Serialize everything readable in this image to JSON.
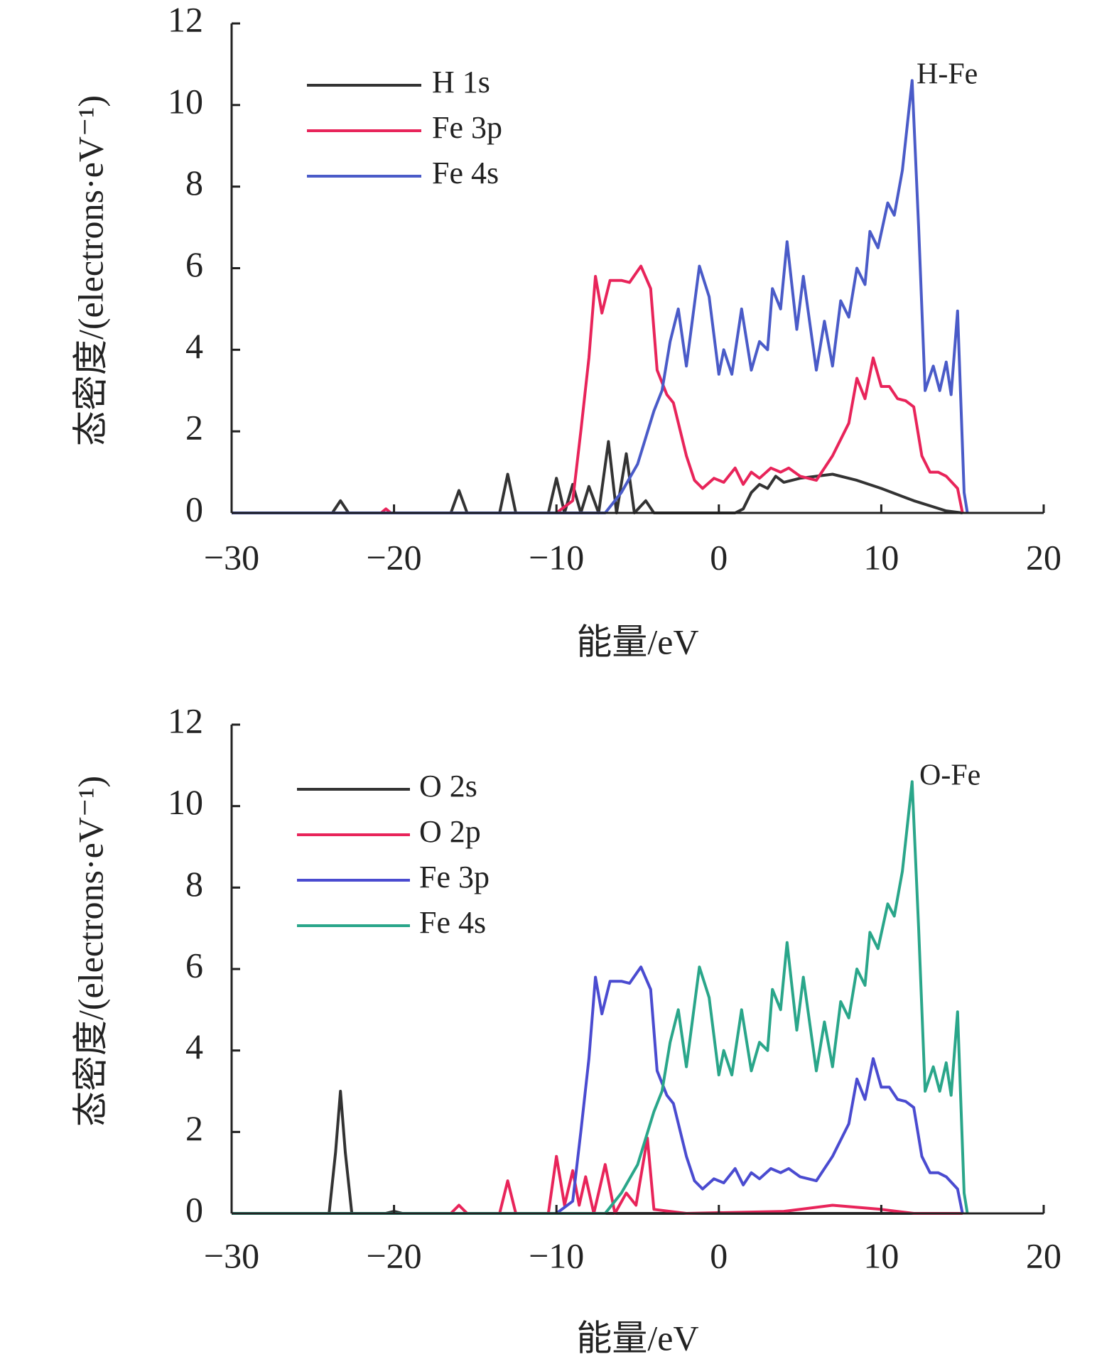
{
  "chart_data": [
    {
      "type": "line",
      "annotation": "H-Fe",
      "x_label": "能量/eV",
      "y_label": "态密度/(electrons·eV⁻¹)",
      "xlim": [
        -30,
        20
      ],
      "ylim": [
        0,
        12
      ],
      "xticks": [
        {
          "value": -30,
          "label": "−30"
        },
        {
          "value": -20,
          "label": "−20"
        },
        {
          "value": -10,
          "label": "−10"
        },
        0,
        10,
        20
      ],
      "yticks": [
        0,
        2,
        4,
        6,
        8,
        10,
        12
      ],
      "series": [
        {
          "name": "H 1s",
          "color": "#333333",
          "x": [
            -30,
            -23.8,
            -23.3,
            -22.8,
            -16.5,
            -16,
            -15.5,
            -13.5,
            -13,
            -12.5,
            -10.5,
            -10,
            -9.5,
            -9,
            -8.5,
            -8,
            -7.4,
            -6.8,
            -6.3,
            -5.7,
            -5.2,
            -4.5,
            -4,
            1,
            1.5,
            2,
            2.5,
            3,
            3.5,
            4,
            5,
            7,
            8.5,
            10,
            12,
            14,
            15
          ],
          "values": [
            0,
            0,
            0.3,
            0,
            0,
            0.55,
            0,
            0,
            0.95,
            0,
            0,
            0.85,
            0,
            0.7,
            0,
            0.65,
            0,
            1.75,
            0,
            1.45,
            0,
            0.3,
            0,
            0,
            0.1,
            0.5,
            0.7,
            0.6,
            0.9,
            0.75,
            0.85,
            0.95,
            0.8,
            0.6,
            0.3,
            0.05,
            0
          ]
        },
        {
          "name": "Fe 3p",
          "color": "#e8245a",
          "x": [
            -30,
            -20.8,
            -20.5,
            -20.2,
            -10,
            -9,
            -8.5,
            -8,
            -7.6,
            -7.2,
            -6.7,
            -6,
            -5.5,
            -4.8,
            -4.2,
            -3.8,
            -3.2,
            -2.8,
            -2,
            -1.5,
            -1,
            -0.3,
            0.3,
            1,
            1.5,
            2,
            2.5,
            3.2,
            3.8,
            4.3,
            5,
            6,
            7,
            8,
            8.5,
            9,
            9.5,
            10,
            10.5,
            11,
            11.5,
            12,
            12.5,
            13,
            13.5,
            14,
            14.7,
            15
          ],
          "values": [
            0,
            0,
            0.1,
            0,
            0,
            0.3,
            2,
            3.8,
            5.8,
            4.9,
            5.7,
            5.7,
            5.65,
            6.05,
            5.5,
            3.5,
            2.9,
            2.7,
            1.4,
            0.8,
            0.6,
            0.85,
            0.75,
            1.1,
            0.7,
            1.0,
            0.85,
            1.1,
            1.0,
            1.1,
            0.9,
            0.8,
            1.4,
            2.2,
            3.3,
            2.8,
            3.8,
            3.1,
            3.1,
            2.8,
            2.75,
            2.6,
            1.4,
            1.0,
            1.0,
            0.9,
            0.6,
            0
          ]
        },
        {
          "name": "Fe 4s",
          "color": "#4a5bc8",
          "x": [
            -30,
            -7,
            -6,
            -5,
            -4,
            -3.5,
            -3,
            -2.5,
            -2,
            -1.2,
            -0.6,
            0,
            0.3,
            0.8,
            1.4,
            2,
            2.5,
            3,
            3.3,
            3.8,
            4.2,
            4.8,
            5.2,
            6,
            6.5,
            7,
            7.5,
            8,
            8.5,
            9,
            9.3,
            9.8,
            10.4,
            10.8,
            11.3,
            11.9,
            12.3,
            12.7,
            13.2,
            13.6,
            14,
            14.3,
            14.7,
            15.1,
            15.3
          ],
          "values": [
            0,
            0,
            0.5,
            1.2,
            2.5,
            3.0,
            4.2,
            5.0,
            3.6,
            6.05,
            5.3,
            3.4,
            4.0,
            3.4,
            5.0,
            3.5,
            4.2,
            4.0,
            5.5,
            5.0,
            6.65,
            4.5,
            5.8,
            3.5,
            4.7,
            3.6,
            5.2,
            4.8,
            6.0,
            5.6,
            6.9,
            6.5,
            7.6,
            7.3,
            8.4,
            10.6,
            7,
            3.0,
            3.6,
            3.0,
            3.7,
            2.9,
            4.95,
            0.5,
            0
          ]
        }
      ]
    },
    {
      "type": "line",
      "annotation": "O-Fe",
      "x_label": "能量/eV",
      "y_label": "态密度/(electrons·eV⁻¹)",
      "xlim": [
        -30,
        20
      ],
      "ylim": [
        0,
        12
      ],
      "xticks": [
        {
          "value": -30,
          "label": "−30"
        },
        {
          "value": -20,
          "label": "−20"
        },
        {
          "value": -10,
          "label": "−10"
        },
        0,
        10,
        20
      ],
      "yticks": [
        0,
        2,
        4,
        6,
        8,
        10,
        12
      ],
      "series": [
        {
          "name": "O  2s",
          "color": "#333333",
          "x": [
            -30,
            -24,
            -23.6,
            -23.3,
            -23,
            -22.6,
            -20.5,
            -20,
            -19.5,
            15
          ],
          "values": [
            0,
            0,
            1.5,
            3.0,
            1.5,
            0,
            0,
            0.05,
            0,
            0
          ]
        },
        {
          "name": "O  2p",
          "color": "#e8245a",
          "x": [
            -30,
            -16.5,
            -16,
            -15.5,
            -13.5,
            -13,
            -12.5,
            -10.5,
            -10,
            -9.5,
            -9,
            -8.6,
            -8.2,
            -7.7,
            -7,
            -6.4,
            -5.7,
            -5.1,
            -4.4,
            -4,
            -2,
            4,
            7,
            10,
            12,
            15
          ],
          "values": [
            0,
            0,
            0.2,
            0,
            0,
            0.8,
            0,
            0,
            1.4,
            0.2,
            1.05,
            0.2,
            0.9,
            0,
            1.2,
            0,
            0.5,
            0.2,
            1.85,
            0.1,
            0,
            0.05,
            0.2,
            0.1,
            0,
            0
          ]
        },
        {
          "name": "Fe 3p",
          "color": "#4a4bd0",
          "x": [
            -30,
            -10,
            -9,
            -8.5,
            -8,
            -7.6,
            -7.2,
            -6.7,
            -6,
            -5.5,
            -4.8,
            -4.2,
            -3.8,
            -3.2,
            -2.8,
            -2,
            -1.5,
            -1,
            -0.3,
            0.3,
            1,
            1.5,
            2,
            2.5,
            3.2,
            3.8,
            4.3,
            5,
            6,
            7,
            8,
            8.5,
            9,
            9.5,
            10,
            10.5,
            11,
            11.5,
            12,
            12.5,
            13,
            13.5,
            14,
            14.7,
            15
          ],
          "values": [
            0,
            0,
            0.3,
            2,
            3.8,
            5.8,
            4.9,
            5.7,
            5.7,
            5.65,
            6.05,
            5.5,
            3.5,
            2.9,
            2.7,
            1.4,
            0.8,
            0.6,
            0.85,
            0.75,
            1.1,
            0.7,
            1.0,
            0.85,
            1.1,
            1.0,
            1.1,
            0.9,
            0.8,
            1.4,
            2.2,
            3.3,
            2.8,
            3.8,
            3.1,
            3.1,
            2.8,
            2.75,
            2.6,
            1.4,
            1.0,
            1.0,
            0.9,
            0.6,
            0
          ]
        },
        {
          "name": "Fe 4s",
          "color": "#2aa68a",
          "x": [
            -30,
            -7,
            -6,
            -5,
            -4,
            -3.5,
            -3,
            -2.5,
            -2,
            -1.2,
            -0.6,
            0,
            0.3,
            0.8,
            1.4,
            2,
            2.5,
            3,
            3.3,
            3.8,
            4.2,
            4.8,
            5.2,
            6,
            6.5,
            7,
            7.5,
            8,
            8.5,
            9,
            9.3,
            9.8,
            10.4,
            10.8,
            11.3,
            11.9,
            12.3,
            12.7,
            13.2,
            13.6,
            14,
            14.3,
            14.7,
            15.1,
            15.3
          ],
          "values": [
            0,
            0,
            0.5,
            1.2,
            2.5,
            3.0,
            4.2,
            5.0,
            3.6,
            6.05,
            5.3,
            3.4,
            4.0,
            3.4,
            5.0,
            3.5,
            4.2,
            4.0,
            5.5,
            5.0,
            6.65,
            4.5,
            5.8,
            3.5,
            4.7,
            3.6,
            5.2,
            4.8,
            6.0,
            5.6,
            6.9,
            6.5,
            7.6,
            7.3,
            8.4,
            10.6,
            7,
            3.0,
            3.6,
            3.0,
            3.7,
            2.9,
            4.95,
            0.5,
            0
          ]
        }
      ]
    }
  ]
}
